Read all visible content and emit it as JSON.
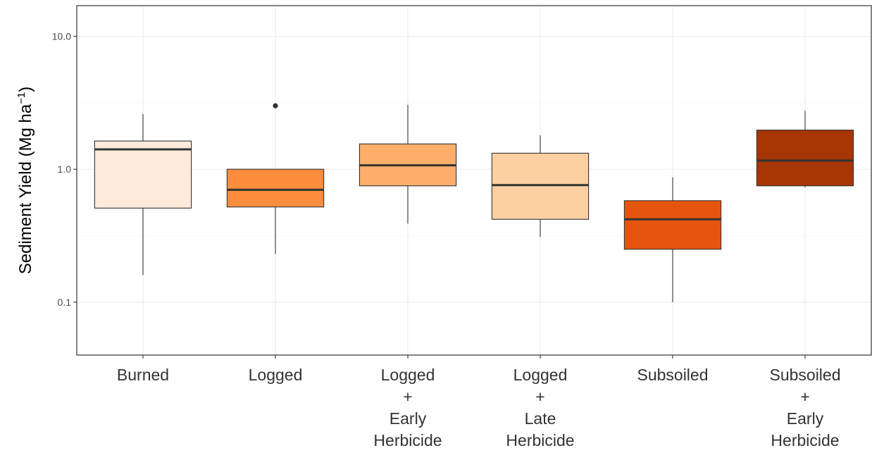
{
  "chart_data": {
    "type": "boxplot",
    "ylabel": "Sediment Yield (Mg  ha",
    "ylabel_superscript": "−1",
    "ylabel_close": ")",
    "y_scale": "log10",
    "ylim": [
      0.04,
      17
    ],
    "y_ticks": [
      0.1,
      1.0,
      10.0
    ],
    "y_tick_labels": [
      "0.1",
      "1.0",
      "10.0"
    ],
    "grid": true,
    "categories": [
      {
        "label_lines": [
          "Burned"
        ],
        "fill": "#FEEBDC",
        "whisker_low": 0.16,
        "q1": 0.51,
        "median": 1.41,
        "q3": 1.63,
        "whisker_high": 2.6,
        "outliers": []
      },
      {
        "label_lines": [
          "Logged"
        ],
        "fill": "#FD8D3C",
        "whisker_low": 0.23,
        "q1": 0.52,
        "median": 0.7,
        "q3": 1.0,
        "whisker_high": 1.0,
        "outliers": [
          3.0
        ]
      },
      {
        "label_lines": [
          "Logged",
          "+",
          "Early",
          "Herbicide"
        ],
        "fill": "#FDAE6B",
        "whisker_low": 0.39,
        "q1": 0.75,
        "median": 1.07,
        "q3": 1.55,
        "whisker_high": 3.05,
        "outliers": []
      },
      {
        "label_lines": [
          "Logged",
          "+",
          "Late",
          "Herbicide"
        ],
        "fill": "#FDD0A2",
        "whisker_low": 0.31,
        "q1": 0.42,
        "median": 0.76,
        "q3": 1.32,
        "whisker_high": 1.8,
        "outliers": []
      },
      {
        "label_lines": [
          "Subsoiled"
        ],
        "fill": "#E6550D",
        "whisker_low": 0.1,
        "q1": 0.25,
        "median": 0.42,
        "q3": 0.58,
        "whisker_high": 0.87,
        "outliers": []
      },
      {
        "label_lines": [
          "Subsoiled",
          "+",
          "Early",
          "Herbicide"
        ],
        "fill": "#A63603",
        "whisker_low": 0.73,
        "q1": 0.75,
        "median": 1.16,
        "q3": 1.97,
        "whisker_high": 2.75,
        "outliers": []
      }
    ]
  }
}
